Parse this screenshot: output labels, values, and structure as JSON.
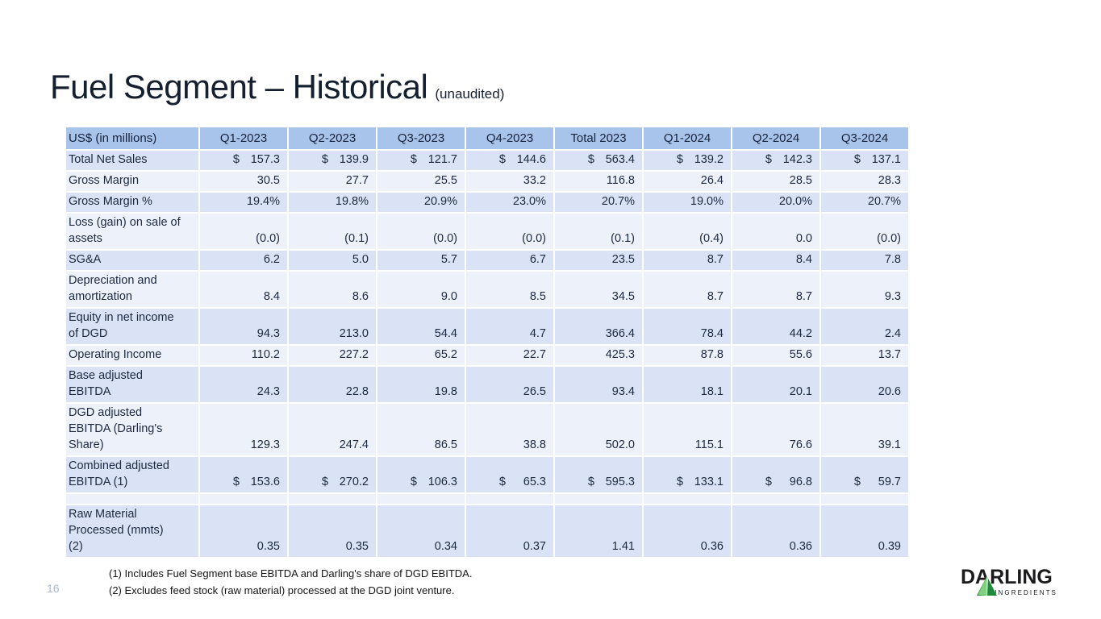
{
  "slide": {
    "title": "Fuel Segment – Historical",
    "title_suffix": "(unaudited)",
    "page_number": "16"
  },
  "colors": {
    "header_bg": "#a9c4ea",
    "row_light": "#d9e3f5",
    "row_pale": "#edf1fa",
    "title_text": "#14202f",
    "logo_green": "#3fae49"
  },
  "table": {
    "header": [
      "US$ (in millions)",
      "Q1-2023",
      "Q2-2023",
      "Q3-2023",
      "Q4-2023",
      "Total 2023",
      "Q1-2024",
      "Q2-2024",
      "Q3-2024"
    ],
    "rows": [
      {
        "label": "Total Net Sales",
        "dollar": true,
        "values": [
          "157.3",
          "139.9",
          "121.7",
          "144.6",
          "563.4",
          "139.2",
          "142.3",
          "137.1"
        ]
      },
      {
        "label": "Gross Margin",
        "dollar": false,
        "values": [
          "30.5",
          "27.7",
          "25.5",
          "33.2",
          "116.8",
          "26.4",
          "28.5",
          "28.3"
        ]
      },
      {
        "label": "Gross Margin %",
        "dollar": false,
        "values": [
          "19.4%",
          "19.8%",
          "20.9%",
          "23.0%",
          "20.7%",
          "19.0%",
          "20.0%",
          "20.7%"
        ]
      },
      {
        "label": "Loss (gain) on sale of\nassets",
        "dollar": false,
        "values": [
          "(0.0)",
          "(0.1)",
          "(0.0)",
          "(0.0)",
          "(0.1)",
          "(0.4)",
          "0.0",
          "(0.0)"
        ]
      },
      {
        "label": "SG&A",
        "dollar": false,
        "values": [
          "6.2",
          "5.0",
          "5.7",
          "6.7",
          "23.5",
          "8.7",
          "8.4",
          "7.8"
        ]
      },
      {
        "label": "Depreciation and\namortization",
        "dollar": false,
        "values": [
          "8.4",
          "8.6",
          "9.0",
          "8.5",
          "34.5",
          "8.7",
          "8.7",
          "9.3"
        ]
      },
      {
        "label": "Equity in net income\nof DGD",
        "dollar": false,
        "values": [
          "94.3",
          "213.0",
          "54.4",
          "4.7",
          "366.4",
          "78.4",
          "44.2",
          "2.4"
        ]
      },
      {
        "label": "Operating Income",
        "dollar": false,
        "values": [
          "110.2",
          "227.2",
          "65.2",
          "22.7",
          "425.3",
          "87.8",
          "55.6",
          "13.7"
        ]
      },
      {
        "label": "Base adjusted\nEBITDA",
        "dollar": false,
        "values": [
          "24.3",
          "22.8",
          "19.8",
          "26.5",
          "93.4",
          "18.1",
          "20.1",
          "20.6"
        ]
      },
      {
        "label": "DGD adjusted\nEBITDA (Darling's\nShare)",
        "dollar": false,
        "values": [
          "129.3",
          "247.4",
          "86.5",
          "38.8",
          "502.0",
          "115.1",
          "76.6",
          "39.1"
        ]
      },
      {
        "label": "Combined adjusted\nEBITDA (1)",
        "dollar": true,
        "values": [
          "153.6",
          "270.2",
          "106.3",
          "65.3",
          "595.3",
          "133.1",
          "96.8",
          "59.7"
        ]
      },
      {
        "label": "",
        "blank": true,
        "dollar": false,
        "values": [
          "",
          "",
          "",
          "",
          "",
          "",
          "",
          ""
        ]
      },
      {
        "label": "Raw Material\nProcessed (mmts)\n(2)",
        "dollar": false,
        "values": [
          "0.35",
          "0.35",
          "0.34",
          "0.37",
          "1.41",
          "0.36",
          "0.36",
          "0.39"
        ]
      }
    ]
  },
  "footnotes": [
    "(1) Includes Fuel Segment base EBITDA and Darling's share of DGD EBITDA.",
    "(2) Excludes feed stock (raw material) processed at the DGD joint venture."
  ],
  "logo": {
    "word": "DARLING",
    "subtext": "INGREDIENTS"
  }
}
